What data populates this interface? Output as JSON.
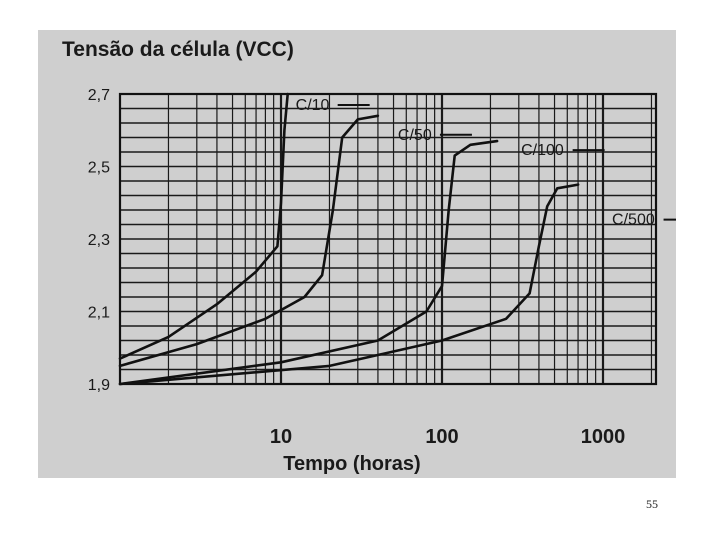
{
  "chart_data": {
    "type": "line",
    "title": "Tensão da célula  (VCC)",
    "xlabel": "Tempo (horas)",
    "ylabel": "",
    "xscale": "log",
    "xlim": [
      1,
      2000
    ],
    "ylim": [
      1.9,
      2.7
    ],
    "xticks": [
      {
        "value": 10,
        "label": "10"
      },
      {
        "value": 100,
        "label": "100"
      },
      {
        "value": 1000,
        "label": "1000"
      }
    ],
    "yticks": [
      {
        "value": 1.9,
        "label": "1,9"
      },
      {
        "value": 2.1,
        "label": "2,1"
      },
      {
        "value": 2.3,
        "label": "2,3"
      },
      {
        "value": 2.5,
        "label": "2,5"
      },
      {
        "value": 2.7,
        "label": "2,7"
      }
    ],
    "grid": true,
    "legend": "none",
    "series": [
      {
        "name": "C/10",
        "x": [
          1,
          2,
          4,
          7,
          9.5,
          10,
          10.5,
          11
        ],
        "y": [
          1.97,
          2.03,
          2.12,
          2.21,
          2.28,
          2.4,
          2.6,
          2.7
        ]
      },
      {
        "name": "C/50",
        "x": [
          1,
          3,
          8,
          14,
          18,
          21,
          24,
          30,
          40
        ],
        "y": [
          1.95,
          2.01,
          2.08,
          2.14,
          2.2,
          2.38,
          2.58,
          2.63,
          2.64
        ]
      },
      {
        "name": "C/100",
        "x": [
          1,
          10,
          40,
          80,
          100,
          110,
          120,
          150,
          220
        ],
        "y": [
          1.9,
          1.96,
          2.02,
          2.1,
          2.17,
          2.38,
          2.53,
          2.56,
          2.57
        ]
      },
      {
        "name": "C/500",
        "x": [
          1,
          20,
          100,
          250,
          350,
          400,
          450,
          520,
          700
        ],
        "y": [
          1.9,
          1.95,
          2.02,
          2.08,
          2.15,
          2.28,
          2.39,
          2.44,
          2.45
        ]
      }
    ],
    "annotations": [
      {
        "text": "C/10",
        "series": "C/10"
      },
      {
        "text": "C/50",
        "series": "C/50"
      },
      {
        "text": "C/100",
        "series": "C/100"
      },
      {
        "text": "C/500",
        "series": "C/500"
      }
    ]
  },
  "slide_number": "55"
}
